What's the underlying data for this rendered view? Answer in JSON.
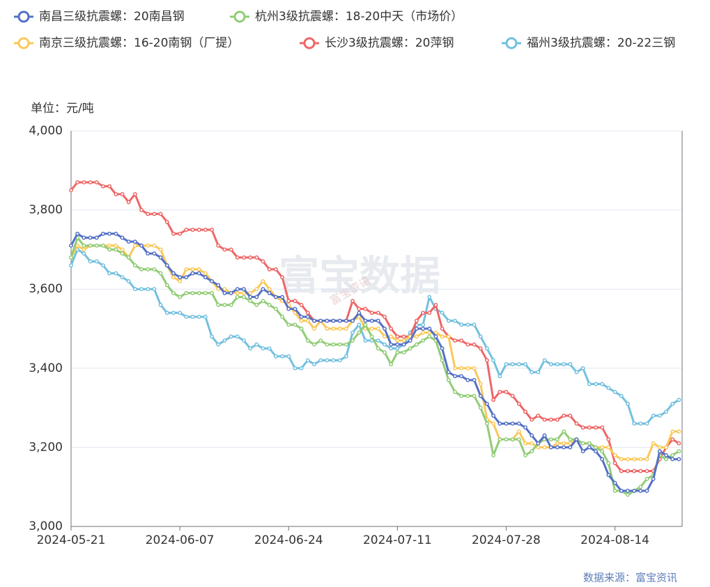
{
  "chart_data": {
    "type": "line",
    "unit_label": "单位：元/吨",
    "watermark": "富宝数据",
    "watermark_small": "富宝资讯",
    "source": "数据来源：富宝资讯",
    "categories": [
      "2024-05-21",
      null,
      null,
      null,
      null,
      null,
      null,
      null,
      null,
      null,
      null,
      null,
      null,
      null,
      null,
      null,
      null,
      "2024-06-07",
      null,
      null,
      null,
      null,
      null,
      null,
      null,
      null,
      null,
      null,
      null,
      null,
      null,
      null,
      null,
      null,
      "2024-06-24",
      null,
      null,
      null,
      null,
      null,
      null,
      null,
      null,
      null,
      null,
      null,
      null,
      null,
      null,
      null,
      null,
      "2024-07-11",
      null,
      null,
      null,
      null,
      null,
      null,
      null,
      null,
      null,
      null,
      null,
      null,
      null,
      null,
      null,
      null,
      "2024-07-28",
      null,
      null,
      null,
      null,
      null,
      null,
      null,
      null,
      null,
      null,
      null,
      null,
      null,
      null,
      null,
      null,
      "2024-08-14",
      null,
      null,
      null,
      null,
      null,
      null,
      null,
      null,
      null,
      null
    ],
    "ylim": [
      3000,
      4000
    ],
    "yticks": [
      {
        "value": 3000,
        "label": "3,000"
      },
      {
        "value": 3200,
        "label": "3,200"
      },
      {
        "value": 3400,
        "label": "3,400"
      },
      {
        "value": 3600,
        "label": "3,600"
      },
      {
        "value": 3800,
        "label": "3,800"
      },
      {
        "value": 4000,
        "label": "4,000"
      }
    ],
    "grid": true,
    "series": [
      {
        "name": "南昌三级抗震螺：20南昌钢",
        "color": "#5470c6",
        "values": [
          3710,
          3740,
          3730,
          3730,
          3730,
          3740,
          3740,
          3740,
          3730,
          3720,
          3720,
          3710,
          3690,
          3690,
          3680,
          3660,
          3640,
          3630,
          3630,
          3640,
          3640,
          3630,
          3620,
          3610,
          3590,
          3590,
          3600,
          3600,
          3580,
          3580,
          3600,
          3590,
          3580,
          3580,
          3550,
          3550,
          3530,
          3530,
          3520,
          3520,
          3520,
          3520,
          3520,
          3520,
          3520,
          3540,
          3520,
          3520,
          3520,
          3500,
          3460,
          3460,
          3460,
          3470,
          3500,
          3500,
          3500,
          3480,
          3450,
          3390,
          3380,
          3380,
          3370,
          3370,
          3330,
          3310,
          3280,
          3260,
          3260,
          3260,
          3260,
          3250,
          3230,
          3210,
          3230,
          3200,
          3200,
          3200,
          3200,
          3220,
          3190,
          3200,
          3190,
          3170,
          3130,
          3110,
          3090,
          3090,
          3090,
          3090,
          3090,
          3120,
          3190,
          3180,
          3170,
          3170
        ]
      },
      {
        "name": "杭州3级抗震螺：18-20中天（市场价）",
        "color": "#91cc75",
        "values": [
          3680,
          3730,
          3710,
          3710,
          3710,
          3710,
          3700,
          3700,
          3690,
          3680,
          3660,
          3650,
          3650,
          3650,
          3640,
          3610,
          3590,
          3580,
          3590,
          3590,
          3590,
          3590,
          3590,
          3560,
          3560,
          3560,
          3580,
          3580,
          3570,
          3560,
          3570,
          3560,
          3550,
          3530,
          3510,
          3510,
          3500,
          3470,
          3460,
          3470,
          3460,
          3460,
          3460,
          3460,
          3470,
          3490,
          3510,
          3480,
          3450,
          3440,
          3410,
          3440,
          3440,
          3450,
          3460,
          3470,
          3480,
          3470,
          3420,
          3370,
          3340,
          3330,
          3330,
          3330,
          3300,
          3260,
          3180,
          3220,
          3220,
          3220,
          3220,
          3180,
          3190,
          3210,
          3220,
          3220,
          3220,
          3240,
          3220,
          3220,
          3210,
          3210,
          3200,
          3190,
          3160,
          3090,
          3090,
          3080,
          3090,
          3100,
          3120,
          3130,
          3180,
          3170,
          3180,
          3190
        ]
      },
      {
        "name": "南京三级抗震螺：16-20南钢（厂提）",
        "color": "#fac858",
        "values": [
          3680,
          3710,
          3700,
          3710,
          3710,
          3710,
          3710,
          3710,
          3700,
          3680,
          3710,
          3710,
          3710,
          3710,
          3700,
          3660,
          3630,
          3620,
          3650,
          3650,
          3650,
          3640,
          3620,
          3600,
          3600,
          3590,
          3590,
          3590,
          3590,
          3600,
          3620,
          3600,
          3580,
          3570,
          3560,
          3540,
          3520,
          3520,
          3500,
          3520,
          3500,
          3500,
          3500,
          3500,
          3520,
          3530,
          3500,
          3500,
          3500,
          3480,
          3480,
          3470,
          3470,
          3480,
          3480,
          3490,
          3490,
          3490,
          3480,
          3480,
          3400,
          3400,
          3400,
          3400,
          3360,
          3270,
          3260,
          3220,
          3220,
          3220,
          3240,
          3210,
          3210,
          3200,
          3200,
          3200,
          3210,
          3210,
          3210,
          3220,
          3210,
          3210,
          3200,
          3200,
          3200,
          3180,
          3170,
          3170,
          3170,
          3170,
          3170,
          3210,
          3200,
          3200,
          3240,
          3240
        ]
      },
      {
        "name": "长沙3级抗震螺：20萍钢",
        "color": "#ee6666",
        "values": [
          3850,
          3870,
          3870,
          3870,
          3870,
          3860,
          3860,
          3840,
          3840,
          3820,
          3840,
          3800,
          3790,
          3790,
          3790,
          3770,
          3740,
          3740,
          3750,
          3750,
          3750,
          3750,
          3750,
          3710,
          3700,
          3700,
          3680,
          3680,
          3680,
          3680,
          3670,
          3650,
          3650,
          3630,
          3570,
          3570,
          3560,
          3540,
          3520,
          3520,
          3520,
          3520,
          3520,
          3520,
          3570,
          3550,
          3550,
          3540,
          3540,
          3530,
          3500,
          3480,
          3480,
          3480,
          3520,
          3540,
          3540,
          3560,
          3500,
          3480,
          3470,
          3470,
          3460,
          3460,
          3450,
          3420,
          3320,
          3340,
          3340,
          3330,
          3310,
          3290,
          3270,
          3280,
          3270,
          3270,
          3270,
          3280,
          3280,
          3260,
          3250,
          3250,
          3250,
          3250,
          3220,
          3160,
          3140,
          3140,
          3140,
          3140,
          3140,
          3140,
          3170,
          3200,
          3220,
          3210
        ]
      },
      {
        "name": "福州3级抗震螺：20-22三钢",
        "color": "#73c0de",
        "values": [
          3660,
          3700,
          3690,
          3670,
          3670,
          3660,
          3640,
          3640,
          3630,
          3620,
          3600,
          3600,
          3600,
          3600,
          3560,
          3540,
          3540,
          3540,
          3530,
          3530,
          3530,
          3530,
          3480,
          3460,
          3470,
          3480,
          3480,
          3470,
          3450,
          3460,
          3450,
          3450,
          3430,
          3430,
          3430,
          3400,
          3400,
          3420,
          3410,
          3420,
          3420,
          3420,
          3420,
          3430,
          3490,
          3510,
          3470,
          3470,
          3470,
          3460,
          3450,
          3450,
          3460,
          3490,
          3510,
          3510,
          3580,
          3550,
          3540,
          3520,
          3520,
          3510,
          3510,
          3510,
          3480,
          3450,
          3420,
          3380,
          3410,
          3410,
          3410,
          3410,
          3390,
          3390,
          3420,
          3410,
          3410,
          3410,
          3410,
          3390,
          3400,
          3360,
          3360,
          3360,
          3350,
          3340,
          3330,
          3310,
          3260,
          3260,
          3260,
          3280,
          3280,
          3290,
          3310,
          3320
        ]
      }
    ]
  }
}
